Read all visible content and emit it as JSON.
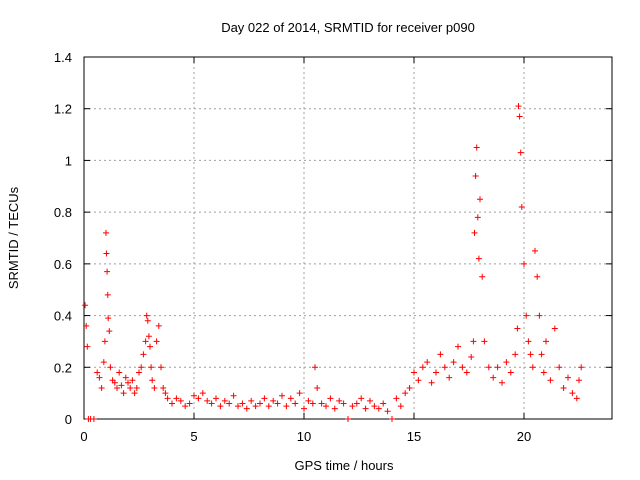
{
  "chart_data": {
    "type": "scatter",
    "title": "Day 022 of 2014, SRMTID for receiver p090",
    "xlabel": "GPS time / hours",
    "ylabel": "SRMTID / TECUs",
    "xlim": [
      0,
      24
    ],
    "ylim": [
      0,
      1.4
    ],
    "xticks": [
      0,
      5,
      10,
      15,
      20
    ],
    "yticks": [
      0,
      0.2,
      0.4,
      0.6,
      0.8,
      1.0,
      1.2,
      1.4
    ],
    "xtick_labels": [
      "0",
      "5",
      "10",
      "15",
      "20"
    ],
    "ytick_labels": [
      "0",
      "0.2",
      "0.4",
      "0.6",
      "0.8",
      "1",
      "1.2",
      "1.4"
    ],
    "grid": true,
    "marker": "+",
    "color": "#ff0000",
    "series": [
      {
        "name": "SRMTID",
        "x": [
          0.05,
          0.1,
          0.15,
          0.2,
          0.3,
          0.45,
          0.6,
          0.7,
          0.8,
          0.9,
          0.95,
          1.0,
          1.02,
          1.05,
          1.08,
          1.1,
          1.15,
          1.2,
          1.3,
          1.4,
          1.5,
          1.6,
          1.7,
          1.8,
          1.9,
          2.0,
          2.1,
          2.2,
          2.3,
          2.4,
          2.5,
          2.6,
          2.7,
          2.8,
          2.85,
          2.9,
          2.95,
          3.0,
          3.05,
          3.1,
          3.2,
          3.3,
          3.4,
          3.5,
          3.6,
          3.7,
          3.8,
          4.0,
          4.2,
          4.4,
          4.6,
          4.8,
          5.0,
          5.2,
          5.4,
          5.6,
          5.8,
          6.0,
          6.2,
          6.4,
          6.6,
          6.8,
          7.0,
          7.2,
          7.4,
          7.6,
          7.8,
          8.0,
          8.2,
          8.4,
          8.6,
          8.8,
          9.0,
          9.2,
          9.4,
          9.6,
          9.8,
          10.0,
          10.2,
          10.4,
          10.5,
          10.6,
          10.8,
          11.0,
          11.2,
          11.4,
          11.6,
          11.8,
          12.0,
          12.2,
          12.4,
          12.6,
          12.8,
          13.0,
          13.2,
          13.4,
          13.6,
          13.8,
          14.0,
          14.2,
          14.4,
          14.6,
          14.8,
          15.0,
          15.2,
          15.4,
          15.6,
          15.8,
          16.0,
          16.2,
          16.4,
          16.6,
          16.8,
          17.0,
          17.2,
          17.4,
          17.6,
          17.7,
          17.75,
          17.8,
          17.85,
          17.9,
          17.95,
          18.0,
          18.1,
          18.2,
          18.4,
          18.6,
          18.8,
          19.0,
          19.2,
          19.4,
          19.6,
          19.7,
          19.75,
          19.8,
          19.85,
          19.9,
          20.0,
          20.1,
          20.2,
          20.3,
          20.4,
          20.5,
          20.6,
          20.7,
          20.8,
          20.9,
          21.0,
          21.2,
          21.4,
          21.6,
          21.8,
          22.0,
          22.2,
          22.4,
          22.5,
          22.6
        ],
        "y": [
          0.44,
          0.36,
          0.28,
          0.0,
          0.0,
          0.0,
          0.18,
          0.16,
          0.12,
          0.22,
          0.3,
          0.72,
          0.64,
          0.57,
          0.48,
          0.39,
          0.34,
          0.2,
          0.15,
          0.14,
          0.12,
          0.18,
          0.13,
          0.1,
          0.16,
          0.14,
          0.12,
          0.15,
          0.1,
          0.12,
          0.18,
          0.2,
          0.25,
          0.3,
          0.4,
          0.38,
          0.32,
          0.28,
          0.2,
          0.15,
          0.12,
          0.3,
          0.36,
          0.2,
          0.12,
          0.1,
          0.08,
          0.06,
          0.08,
          0.07,
          0.05,
          0.06,
          0.09,
          0.08,
          0.1,
          0.07,
          0.06,
          0.08,
          0.05,
          0.07,
          0.06,
          0.09,
          0.05,
          0.06,
          0.04,
          0.07,
          0.05,
          0.06,
          0.08,
          0.05,
          0.07,
          0.06,
          0.09,
          0.05,
          0.08,
          0.06,
          0.1,
          0.04,
          0.07,
          0.06,
          0.2,
          0.12,
          0.06,
          0.05,
          0.08,
          0.04,
          0.07,
          0.06,
          0.0,
          0.05,
          0.06,
          0.08,
          0.04,
          0.07,
          0.05,
          0.04,
          0.06,
          0.03,
          0.0,
          0.08,
          0.05,
          0.1,
          0.12,
          0.18,
          0.15,
          0.2,
          0.22,
          0.14,
          0.18,
          0.25,
          0.2,
          0.16,
          0.22,
          0.28,
          0.2,
          0.18,
          0.24,
          0.3,
          0.72,
          0.94,
          1.05,
          0.78,
          0.62,
          0.85,
          0.55,
          0.3,
          0.2,
          0.16,
          0.2,
          0.14,
          0.22,
          0.18,
          0.25,
          0.35,
          1.21,
          1.17,
          1.03,
          0.82,
          0.6,
          0.4,
          0.3,
          0.25,
          0.2,
          0.65,
          0.55,
          0.4,
          0.25,
          0.18,
          0.3,
          0.15,
          0.35,
          0.2,
          0.12,
          0.16,
          0.1,
          0.08,
          0.15,
          0.2
        ]
      }
    ]
  }
}
